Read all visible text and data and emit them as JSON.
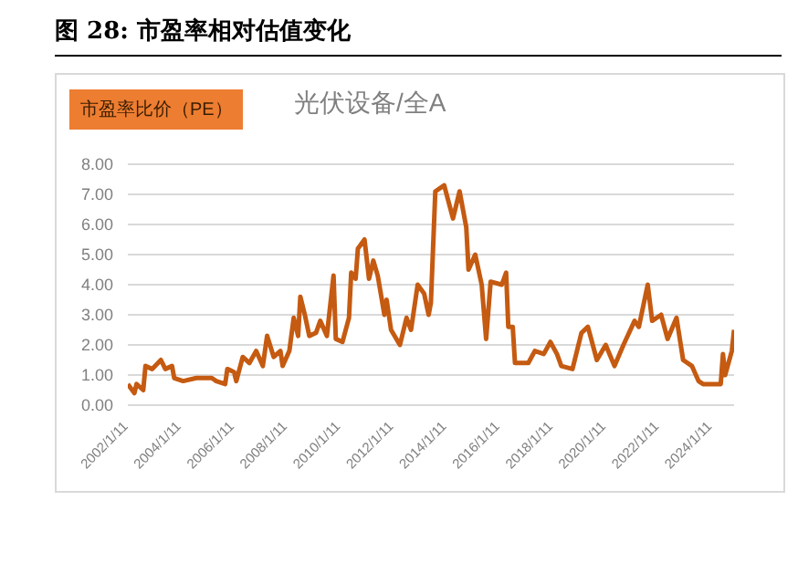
{
  "chart_data": {
    "type": "line",
    "title": "图 28:  市盈率相对估值变化",
    "ylabel": "市盈率比价（PE）",
    "subtitle": "光伏设备/全A",
    "x": [
      "2002-01",
      "2002-04",
      "2002-05",
      "2002-08",
      "2002-09",
      "2002-12",
      "2003-04",
      "2003-06",
      "2003-09",
      "2003-10",
      "2004-02",
      "2004-08",
      "2005-03",
      "2005-05",
      "2005-09",
      "2005-10",
      "2006-01",
      "2006-02",
      "2006-05",
      "2006-08",
      "2006-11",
      "2007-02",
      "2007-04",
      "2007-07",
      "2007-10",
      "2007-11",
      "2008-02",
      "2008-04",
      "2008-06",
      "2008-07",
      "2008-09",
      "2008-11",
      "2009-02",
      "2009-04",
      "2009-07",
      "2009-10",
      "2009-11",
      "2010-02",
      "2010-05",
      "2010-06",
      "2010-08",
      "2010-09",
      "2010-12",
      "2011-02",
      "2011-04",
      "2011-06",
      "2011-09",
      "2011-10",
      "2011-12",
      "2012-04",
      "2012-07",
      "2012-09",
      "2012-12",
      "2013-03",
      "2013-05",
      "2013-06",
      "2013-08",
      "2013-12",
      "2014-04",
      "2014-07",
      "2014-10",
      "2014-11",
      "2015-02",
      "2015-05",
      "2015-07",
      "2015-09",
      "2016-02",
      "2016-04",
      "2016-05",
      "2016-07",
      "2016-08",
      "2017-02",
      "2017-05",
      "2017-09",
      "2017-12",
      "2018-03",
      "2018-05",
      "2018-10",
      "2019-02",
      "2019-05",
      "2019-09",
      "2020-01",
      "2020-05",
      "2020-09",
      "2021-02",
      "2021-04",
      "2021-08",
      "2021-10",
      "2022-02",
      "2022-05",
      "2022-09",
      "2022-12",
      "2023-04",
      "2023-07",
      "2023-09",
      "2024-05",
      "2024-06",
      "2024-07",
      "2024-10",
      "2024-11"
    ],
    "series": [
      {
        "color": "#c55a11",
        "values": [
          0.7,
          0.4,
          0.7,
          0.5,
          1.3,
          1.2,
          1.5,
          1.2,
          1.3,
          0.9,
          0.8,
          0.9,
          0.9,
          0.8,
          0.7,
          1.2,
          1.1,
          0.8,
          1.6,
          1.4,
          1.8,
          1.3,
          2.3,
          1.6,
          1.8,
          1.3,
          1.8,
          2.9,
          2.3,
          3.6,
          3.0,
          2.3,
          2.4,
          2.8,
          2.3,
          4.3,
          2.2,
          2.1,
          2.9,
          4.4,
          4.2,
          5.2,
          5.5,
          4.2,
          4.8,
          4.3,
          3.0,
          3.5,
          2.5,
          2.0,
          2.9,
          2.5,
          4.0,
          3.7,
          3.0,
          3.4,
          7.1,
          7.3,
          6.2,
          7.1,
          5.9,
          4.5,
          5.0,
          4.0,
          2.2,
          4.1,
          4.0,
          4.4,
          2.6,
          2.6,
          1.4,
          1.4,
          1.8,
          1.7,
          2.1,
          1.7,
          1.3,
          1.2,
          2.4,
          2.6,
          1.5,
          2.0,
          1.3,
          2.0,
          2.8,
          2.6,
          4.0,
          2.8,
          3.0,
          2.2,
          2.9,
          1.5,
          1.3,
          0.8,
          0.7,
          0.7,
          1.7,
          1.0,
          1.8,
          2.5
        ]
      }
    ],
    "xlim": [
      "2002-01",
      "2024-11"
    ],
    "xticks": [
      {
        "value": "2002-01-11",
        "label": "2002/1/11"
      },
      {
        "value": "2004-01-11",
        "label": "2004/1/11"
      },
      {
        "value": "2006-01-11",
        "label": "2006/1/11"
      },
      {
        "value": "2008-01-11",
        "label": "2008/1/11"
      },
      {
        "value": "2010-01-11",
        "label": "2010/1/11"
      },
      {
        "value": "2012-01-11",
        "label": "2012/1/11"
      },
      {
        "value": "2014-01-11",
        "label": "2014/1/11"
      },
      {
        "value": "2016-01-11",
        "label": "2016/1/11"
      },
      {
        "value": "2018-01-11",
        "label": "2018/1/11"
      },
      {
        "value": "2020-01-11",
        "label": "2020/1/11"
      },
      {
        "value": "2022-01-11",
        "label": "2022/1/11"
      },
      {
        "value": "2024-01-11",
        "label": "2024/1/11"
      }
    ],
    "ylim": [
      0,
      8
    ],
    "yticks": [
      {
        "value": 0,
        "label": "0.00"
      },
      {
        "value": 1,
        "label": "1.00"
      },
      {
        "value": 2,
        "label": "2.00"
      },
      {
        "value": 3,
        "label": "3.00"
      },
      {
        "value": 4,
        "label": "4.00"
      },
      {
        "value": 5,
        "label": "5.00"
      },
      {
        "value": 6,
        "label": "6.00"
      },
      {
        "value": 7,
        "label": "7.00"
      },
      {
        "value": 8,
        "label": "8.00"
      }
    ],
    "grid": "y",
    "marker": "none",
    "line_style": "solid"
  }
}
